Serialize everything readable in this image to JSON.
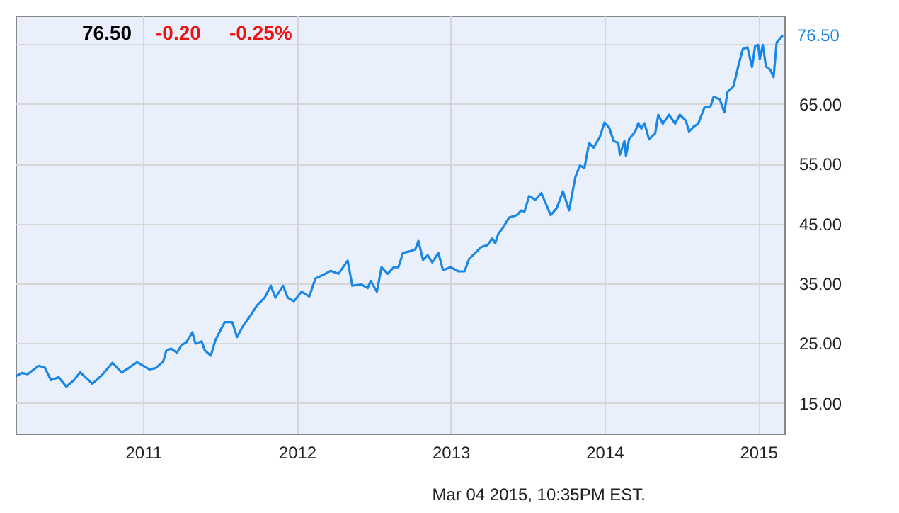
{
  "chart_data": {
    "type": "line",
    "xlim": [
      2010.17,
      2015.17
    ],
    "xticks": [
      2011,
      2012,
      2013,
      2014,
      2015
    ],
    "ylim": [
      9.85,
      79.8
    ],
    "yticks": [
      {
        "value": 15,
        "label": "15.00"
      },
      {
        "value": 25,
        "label": "25.00"
      },
      {
        "value": 35,
        "label": "35.00"
      },
      {
        "value": 45,
        "label": "45.00"
      },
      {
        "value": 55,
        "label": "55.00"
      },
      {
        "value": 65,
        "label": "65.00"
      },
      {
        "value": 75,
        "label": null
      }
    ],
    "grid": true,
    "series": [
      {
        "color": "#1a87e6",
        "x": [
          2010.17,
          2010.21,
          2010.25,
          2010.32,
          2010.36,
          2010.4,
          2010.45,
          2010.5,
          2010.55,
          2010.59,
          2010.67,
          2010.73,
          2010.8,
          2010.86,
          2010.91,
          2010.96,
          2011.04,
          2011.08,
          2011.13,
          2011.15,
          2011.18,
          2011.22,
          2011.25,
          2011.28,
          2011.32,
          2011.34,
          2011.38,
          2011.4,
          2011.44,
          2011.47,
          2011.53,
          2011.58,
          2011.61,
          2011.65,
          2011.7,
          2011.74,
          2011.79,
          2011.83,
          2011.86,
          2011.91,
          2011.94,
          2011.98,
          2012.03,
          2012.08,
          2012.12,
          2012.17,
          2012.22,
          2012.27,
          2012.33,
          2012.36,
          2012.42,
          2012.46,
          2012.48,
          2012.52,
          2012.55,
          2012.59,
          2012.63,
          2012.66,
          2012.69,
          2012.74,
          2012.77,
          2012.79,
          2012.82,
          2012.85,
          2012.88,
          2012.92,
          2012.95,
          2013.0,
          2013.05,
          2013.09,
          2013.12,
          2013.2,
          2013.24,
          2013.27,
          2013.29,
          2013.31,
          2013.34,
          2013.38,
          2013.43,
          2013.46,
          2013.48,
          2013.51,
          2013.55,
          2013.59,
          2013.65,
          2013.69,
          2013.73,
          2013.77,
          2013.81,
          2013.84,
          2013.87,
          2013.9,
          2013.93,
          2013.97,
          2014.0,
          2014.03,
          2014.06,
          2014.09,
          2014.1,
          2014.13,
          2014.14,
          2014.16,
          2014.2,
          2014.22,
          2014.24,
          2014.26,
          2014.29,
          2014.33,
          2014.35,
          2014.38,
          2014.42,
          2014.46,
          2014.49,
          2014.53,
          2014.55,
          2014.58,
          2014.61,
          2014.65,
          2014.69,
          2014.71,
          2014.75,
          2014.78,
          2014.8,
          2014.84,
          2014.87,
          2014.9,
          2014.93,
          2014.96,
          2014.98,
          2015.0,
          2015.01,
          2015.03,
          2015.05,
          2015.08,
          2015.1,
          2015.12,
          2015.16
        ],
        "values": [
          19.4,
          20.0,
          19.8,
          21.2,
          20.9,
          18.8,
          19.3,
          17.7,
          18.8,
          20.1,
          18.2,
          19.6,
          21.7,
          20.1,
          20.9,
          21.8,
          20.6,
          20.8,
          21.9,
          23.7,
          24.1,
          23.4,
          24.7,
          25.1,
          26.8,
          24.9,
          25.3,
          23.8,
          22.9,
          25.5,
          28.5,
          28.5,
          26.0,
          27.9,
          29.7,
          31.3,
          32.6,
          34.6,
          32.6,
          34.6,
          32.6,
          32.0,
          33.6,
          32.8,
          35.8,
          36.4,
          37.1,
          36.6,
          38.8,
          34.6,
          34.8,
          34.2,
          35.4,
          33.6,
          37.7,
          36.6,
          37.7,
          37.7,
          40.1,
          40.4,
          40.7,
          42.1,
          38.9,
          39.7,
          38.5,
          40.1,
          37.2,
          37.7,
          37.0,
          37.0,
          39.1,
          41.1,
          41.4,
          42.5,
          41.7,
          43.3,
          44.3,
          46.0,
          46.4,
          47.2,
          47.0,
          49.6,
          49.0,
          50.1,
          46.4,
          47.6,
          50.4,
          47.2,
          52.7,
          54.7,
          54.3,
          58.5,
          57.7,
          59.5,
          61.9,
          61.1,
          58.8,
          58.5,
          56.5,
          58.8,
          56.3,
          59.1,
          60.4,
          61.8,
          60.9,
          61.8,
          59.1,
          60.1,
          63.2,
          61.7,
          63.2,
          61.7,
          63.2,
          62.2,
          60.4,
          61.2,
          61.7,
          64.4,
          64.6,
          66.2,
          65.8,
          63.6,
          67.0,
          68.0,
          71.3,
          74.2,
          74.5,
          71.2,
          74.7,
          74.9,
          72.5,
          74.9,
          71.3,
          70.7,
          69.5,
          75.3,
          76.5
        ]
      }
    ],
    "annotations": [
      "76.50",
      "-0.20",
      "-0.25%",
      {
        "text": "76.50",
        "x": 2015.16,
        "y": 76.5
      },
      "Mar 04 2015, 10:35PM EST."
    ]
  }
}
